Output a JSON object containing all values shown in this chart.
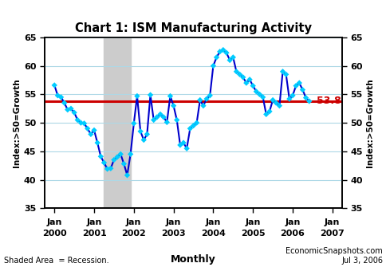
{
  "title": "Chart 1: ISM Manufacturing Activity",
  "ylabel_left": "Index:>50=Growth",
  "ylabel_right": "Index:>50=Growth",
  "ylim": [
    35,
    65
  ],
  "yticks": [
    35,
    40,
    45,
    50,
    55,
    60,
    65
  ],
  "reference_line": 53.8,
  "reference_label": "53.8",
  "recession_start": 2001.25,
  "recession_end": 2001.92,
  "line_color": "#0000CC",
  "marker_color": "#00CCFF",
  "reference_color": "#CC0000",
  "bg_color": "#FFFFFF",
  "grid_color": "#ADD8E6",
  "recession_color": "#CCCCCC",
  "footnote_left": "Shaded Area  = Recession.",
  "footnote_center": "Monthly",
  "footnote_right": "EconomicSnapshots.com\nJul 3, 2006",
  "x_tick_years": [
    2000,
    2001,
    2002,
    2003,
    2004,
    2005,
    2006,
    2007
  ],
  "xlim": [
    1999.75,
    2007.25
  ],
  "ism_data": [
    [
      2000.0,
      56.6
    ],
    [
      2000.083,
      54.8
    ],
    [
      2000.167,
      54.5
    ],
    [
      2000.25,
      53.5
    ],
    [
      2000.333,
      52.3
    ],
    [
      2000.417,
      52.5
    ],
    [
      2000.5,
      51.8
    ],
    [
      2000.583,
      50.5
    ],
    [
      2000.667,
      50.0
    ],
    [
      2000.75,
      49.9
    ],
    [
      2000.833,
      49.0
    ],
    [
      2000.917,
      48.0
    ],
    [
      2001.0,
      48.7
    ],
    [
      2001.083,
      46.5
    ],
    [
      2001.167,
      44.1
    ],
    [
      2001.25,
      43.0
    ],
    [
      2001.333,
      41.9
    ],
    [
      2001.417,
      42.0
    ],
    [
      2001.5,
      43.5
    ],
    [
      2001.583,
      44.0
    ],
    [
      2001.667,
      44.5
    ],
    [
      2001.75,
      42.8
    ],
    [
      2001.833,
      40.8
    ],
    [
      2001.917,
      44.5
    ],
    [
      2002.0,
      49.9
    ],
    [
      2002.083,
      54.7
    ],
    [
      2002.167,
      48.5
    ],
    [
      2002.25,
      47.0
    ],
    [
      2002.333,
      48.0
    ],
    [
      2002.417,
      54.9
    ],
    [
      2002.5,
      50.5
    ],
    [
      2002.583,
      51.0
    ],
    [
      2002.667,
      51.5
    ],
    [
      2002.75,
      51.0
    ],
    [
      2002.833,
      50.1
    ],
    [
      2002.917,
      54.7
    ],
    [
      2003.0,
      53.0
    ],
    [
      2003.083,
      50.5
    ],
    [
      2003.167,
      46.1
    ],
    [
      2003.25,
      46.5
    ],
    [
      2003.333,
      45.5
    ],
    [
      2003.417,
      49.0
    ],
    [
      2003.5,
      49.5
    ],
    [
      2003.583,
      50.0
    ],
    [
      2003.667,
      54.0
    ],
    [
      2003.75,
      53.0
    ],
    [
      2003.833,
      54.2
    ],
    [
      2003.917,
      54.8
    ],
    [
      2004.0,
      60.0
    ],
    [
      2004.083,
      61.5
    ],
    [
      2004.167,
      62.5
    ],
    [
      2004.25,
      62.8
    ],
    [
      2004.333,
      62.3
    ],
    [
      2004.417,
      61.0
    ],
    [
      2004.5,
      61.5
    ],
    [
      2004.583,
      59.0
    ],
    [
      2004.667,
      58.5
    ],
    [
      2004.75,
      58.0
    ],
    [
      2004.833,
      57.0
    ],
    [
      2004.917,
      57.6
    ],
    [
      2005.0,
      56.5
    ],
    [
      2005.083,
      55.5
    ],
    [
      2005.167,
      55.0
    ],
    [
      2005.25,
      54.5
    ],
    [
      2005.333,
      51.5
    ],
    [
      2005.417,
      52.0
    ],
    [
      2005.5,
      54.0
    ],
    [
      2005.583,
      53.5
    ],
    [
      2005.667,
      53.0
    ],
    [
      2005.75,
      59.0
    ],
    [
      2005.833,
      58.5
    ],
    [
      2005.917,
      54.2
    ],
    [
      2006.0,
      54.8
    ],
    [
      2006.083,
      56.5
    ],
    [
      2006.167,
      57.0
    ],
    [
      2006.25,
      55.8
    ],
    [
      2006.333,
      54.4
    ],
    [
      2006.417,
      53.8
    ]
  ]
}
